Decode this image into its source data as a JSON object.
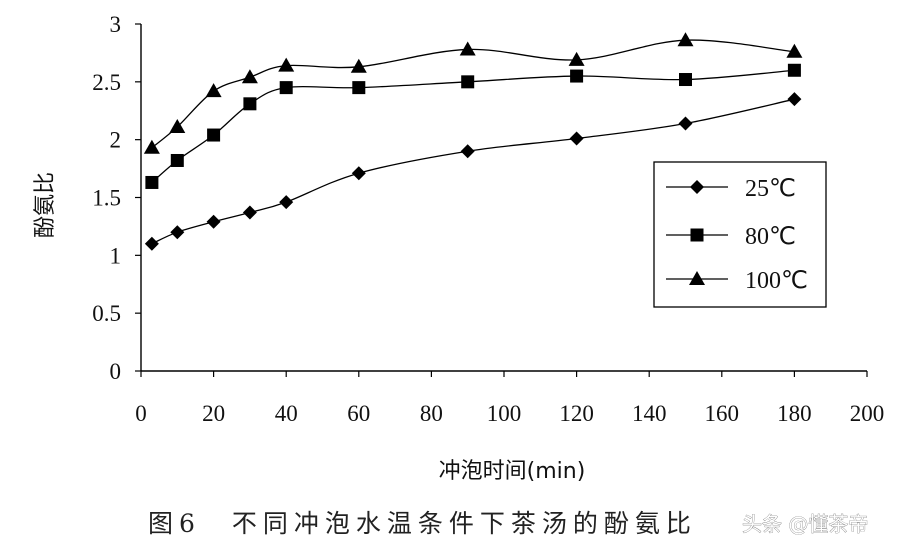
{
  "chart_data": {
    "type": "line",
    "title": "",
    "xlabel": "冲泡时间(min)",
    "ylabel": "酚氨比",
    "xlim": [
      0,
      200
    ],
    "ylim": [
      0,
      3
    ],
    "x_ticks": [
      "0",
      "20",
      "40",
      "60",
      "80",
      "100",
      "120",
      "140",
      "160",
      "180",
      "200"
    ],
    "y_ticks": [
      "0",
      "0.5",
      "1",
      "1.5",
      "2",
      "2.5",
      "3"
    ],
    "grid": false,
    "legend_position": "right-middle",
    "x": [
      3,
      10,
      20,
      30,
      40,
      60,
      90,
      120,
      150,
      180
    ],
    "series": [
      {
        "name": "25℃",
        "marker": "diamond",
        "values": [
          1.1,
          1.2,
          1.29,
          1.37,
          1.46,
          1.71,
          1.9,
          2.01,
          2.14,
          2.35
        ]
      },
      {
        "name": "80℃",
        "marker": "square",
        "values": [
          1.63,
          1.82,
          2.04,
          2.31,
          2.45,
          2.45,
          2.5,
          2.55,
          2.52,
          2.6
        ]
      },
      {
        "name": "100℃",
        "marker": "triangle",
        "values": [
          1.93,
          2.11,
          2.42,
          2.54,
          2.64,
          2.63,
          2.78,
          2.69,
          2.86,
          2.76
        ]
      }
    ]
  },
  "caption": "图6　不同冲泡水温条件下茶汤的酚氨比",
  "watermark": "头条 @懂茶帝",
  "colors": {
    "line": "#000000",
    "axis": "#000000"
  }
}
